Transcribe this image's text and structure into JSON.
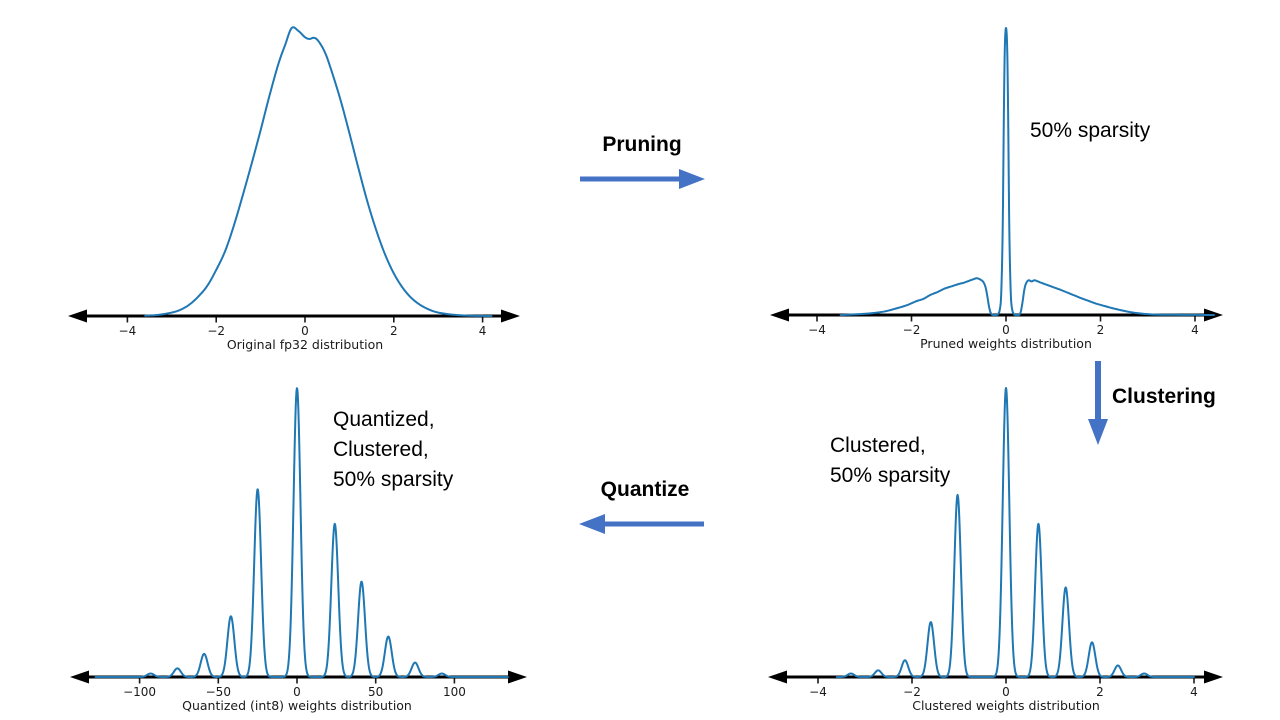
{
  "colors": {
    "curve": "#1f77b4",
    "axis": "#000000",
    "tick_text": "#1a1a1a",
    "flow_arrow": "#4472c4",
    "annotation_text": "#000000"
  },
  "flow_labels": {
    "pruning": "Pruning",
    "clustering": "Clustering",
    "quantize": "Quantize"
  },
  "annotations": {
    "pruned": "50% sparsity",
    "clustered": [
      "Clustered,",
      "50% sparsity"
    ],
    "quantized": [
      "Quantized,",
      "Clustered,",
      "50% sparsity"
    ]
  },
  "chart_data": [
    {
      "id": "original-fp32",
      "type": "line",
      "xlabel": "Original fp32 distribution",
      "xticks": [
        -4,
        -2,
        0,
        2,
        4
      ],
      "xtick_labels": [
        "−4",
        "−2",
        "0",
        "2",
        "4"
      ],
      "xlim": [
        -5,
        5
      ],
      "ylim": [
        0,
        1
      ],
      "grid": false,
      "points": [
        [
          -3.6,
          0.001
        ],
        [
          -3.3,
          0.004
        ],
        [
          -3.0,
          0.012
        ],
        [
          -2.8,
          0.022
        ],
        [
          -2.6,
          0.04
        ],
        [
          -2.4,
          0.068
        ],
        [
          -2.2,
          0.105
        ],
        [
          -2.0,
          0.16
        ],
        [
          -1.8,
          0.225
        ],
        [
          -1.6,
          0.315
        ],
        [
          -1.4,
          0.42
        ],
        [
          -1.2,
          0.53
        ],
        [
          -1.0,
          0.645
        ],
        [
          -0.8,
          0.765
        ],
        [
          -0.6,
          0.875
        ],
        [
          -0.45,
          0.94
        ],
        [
          -0.3,
          1.0
        ],
        [
          -0.15,
          0.99
        ],
        [
          0.0,
          0.968
        ],
        [
          0.1,
          0.962
        ],
        [
          0.2,
          0.966
        ],
        [
          0.3,
          0.955
        ],
        [
          0.45,
          0.915
        ],
        [
          0.6,
          0.85
        ],
        [
          0.8,
          0.75
        ],
        [
          1.0,
          0.635
        ],
        [
          1.2,
          0.515
        ],
        [
          1.4,
          0.4
        ],
        [
          1.6,
          0.3
        ],
        [
          1.8,
          0.215
        ],
        [
          2.0,
          0.148
        ],
        [
          2.2,
          0.098
        ],
        [
          2.4,
          0.062
        ],
        [
          2.6,
          0.038
        ],
        [
          2.8,
          0.022
        ],
        [
          3.0,
          0.012
        ],
        [
          3.3,
          0.005
        ],
        [
          3.7,
          0.001
        ],
        [
          4.2,
          0.0
        ]
      ]
    },
    {
      "id": "pruned",
      "type": "line",
      "xlabel": "Pruned weights distribution",
      "xticks": [
        -4,
        -2,
        0,
        2,
        4
      ],
      "xtick_labels": [
        "−4",
        "−2",
        "0",
        "2",
        "4"
      ],
      "xlim": [
        -5,
        5
      ],
      "ylim": [
        0,
        1
      ],
      "grid": false,
      "points": [
        [
          -3.5,
          0.0
        ],
        [
          -3.1,
          0.003
        ],
        [
          -2.8,
          0.007
        ],
        [
          -2.55,
          0.013
        ],
        [
          -2.3,
          0.024
        ],
        [
          -2.1,
          0.034
        ],
        [
          -1.9,
          0.048
        ],
        [
          -1.75,
          0.056
        ],
        [
          -1.6,
          0.07
        ],
        [
          -1.45,
          0.08
        ],
        [
          -1.3,
          0.092
        ],
        [
          -1.15,
          0.1
        ],
        [
          -1.0,
          0.108
        ],
        [
          -0.9,
          0.112
        ],
        [
          -0.8,
          0.118
        ],
        [
          -0.7,
          0.124
        ],
        [
          -0.62,
          0.128
        ],
        [
          -0.55,
          0.124
        ],
        [
          -0.48,
          0.115
        ],
        [
          -0.43,
          0.095
        ],
        [
          -0.39,
          0.06
        ],
        [
          -0.36,
          0.03
        ],
        [
          -0.33,
          0.01
        ],
        [
          -0.3,
          0.002
        ],
        [
          -0.27,
          0.0
        ],
        [
          -0.21,
          0.0
        ],
        [
          -0.17,
          0.003
        ],
        [
          -0.13,
          0.02
        ],
        [
          -0.1,
          0.08
        ],
        [
          -0.07,
          0.3
        ],
        [
          -0.045,
          0.7
        ],
        [
          -0.025,
          0.93
        ],
        [
          0.0,
          1.0
        ],
        [
          0.025,
          0.93
        ],
        [
          0.045,
          0.7
        ],
        [
          0.07,
          0.3
        ],
        [
          0.1,
          0.08
        ],
        [
          0.13,
          0.02
        ],
        [
          0.17,
          0.003
        ],
        [
          0.21,
          0.0
        ],
        [
          0.27,
          0.0
        ],
        [
          0.31,
          0.01
        ],
        [
          0.35,
          0.045
        ],
        [
          0.39,
          0.09
        ],
        [
          0.43,
          0.112
        ],
        [
          0.48,
          0.121
        ],
        [
          0.54,
          0.117
        ],
        [
          0.6,
          0.121
        ],
        [
          0.66,
          0.118
        ],
        [
          0.75,
          0.112
        ],
        [
          0.85,
          0.106
        ],
        [
          0.95,
          0.1
        ],
        [
          1.05,
          0.094
        ],
        [
          1.15,
          0.088
        ],
        [
          1.3,
          0.078
        ],
        [
          1.45,
          0.068
        ],
        [
          1.6,
          0.058
        ],
        [
          1.75,
          0.049
        ],
        [
          1.9,
          0.04
        ],
        [
          2.05,
          0.033
        ],
        [
          2.2,
          0.026
        ],
        [
          2.4,
          0.018
        ],
        [
          2.6,
          0.011
        ],
        [
          2.8,
          0.006
        ],
        [
          3.0,
          0.003
        ],
        [
          3.3,
          0.001
        ],
        [
          4.4,
          0.0
        ]
      ]
    },
    {
      "id": "clustered",
      "type": "line",
      "xlabel": "Clustered weights distribution",
      "xticks": [
        -4,
        -2,
        0,
        2,
        4
      ],
      "xtick_labels": [
        "−4",
        "−2",
        "0",
        "2",
        "4"
      ],
      "xlim": [
        -3.6,
        4.0
      ],
      "ylim": [
        0,
        1
      ],
      "grid": false,
      "peaks": {
        "centers": [
          -3.3,
          -2.72,
          -2.15,
          -1.6,
          -1.03,
          0.0,
          0.69,
          1.27,
          1.83,
          2.38,
          2.94
        ],
        "heights": [
          0.012,
          0.023,
          0.058,
          0.19,
          0.63,
          1.0,
          0.53,
          0.31,
          0.12,
          0.04,
          0.012
        ],
        "sigma": 0.07
      }
    },
    {
      "id": "quantized-int8",
      "type": "line",
      "xlabel": "Quantized (int8) weights distribution",
      "xticks": [
        -100,
        -50,
        0,
        50,
        100
      ],
      "xtick_labels": [
        "−100",
        "−50",
        "0",
        "50",
        "100"
      ],
      "xlim": [
        -128,
        134
      ],
      "ylim": [
        0,
        1
      ],
      "grid": false,
      "peaks": {
        "centers": [
          -93,
          -76,
          -59,
          -42,
          -25,
          0,
          24,
          41,
          58,
          75,
          92
        ],
        "heights": [
          0.012,
          0.03,
          0.08,
          0.21,
          0.65,
          1.0,
          0.53,
          0.33,
          0.14,
          0.05,
          0.012
        ],
        "sigma": 2.2
      }
    }
  ]
}
